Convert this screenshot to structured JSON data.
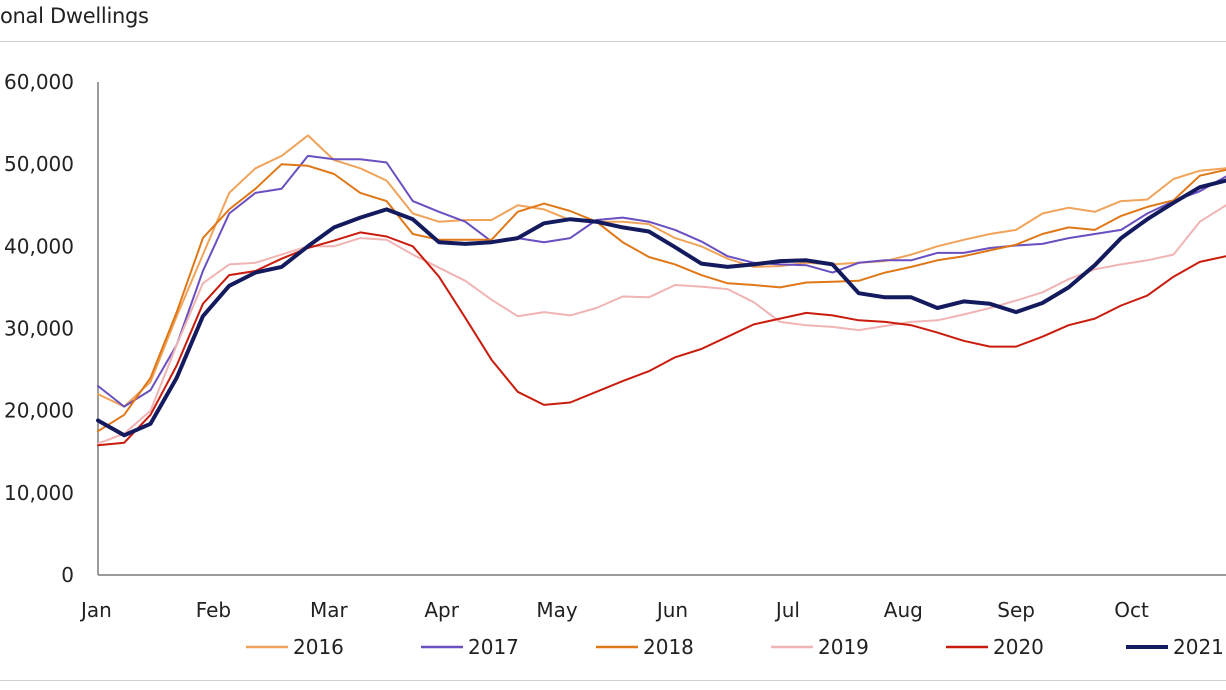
{
  "header": {
    "title": "onal Dwellings"
  },
  "chart_data": {
    "type": "line",
    "title": "onal Dwellings",
    "xlabel": "",
    "ylabel": "",
    "ylim": [
      0,
      60000
    ],
    "y_ticks": [
      0,
      10000,
      20000,
      30000,
      40000,
      50000,
      60000
    ],
    "y_tick_labels": [
      "0",
      "10,000",
      "20,000",
      "30,000",
      "40,000",
      "50,000",
      "60,000"
    ],
    "x_unit": "week",
    "x_tick_labels": [
      "Jan",
      "Feb",
      "Mar",
      "Apr",
      "May",
      "Jun",
      "Jul",
      "Aug",
      "Sep",
      "Oct"
    ],
    "x_tick_weeks": [
      0,
      4.4,
      8.8,
      13.1,
      17.5,
      21.9,
      26.3,
      30.7,
      35,
      39.4
    ],
    "x_visible_max": 43,
    "grid": false,
    "legend_position": "bottom",
    "series": [
      {
        "name": "2016",
        "color": "#f0a35a",
        "width": 2,
        "x": [
          0,
          1,
          2,
          3,
          4,
          5,
          6,
          7,
          8,
          9,
          10,
          11,
          12,
          13,
          14,
          15,
          16,
          17,
          18,
          19,
          20,
          21,
          22,
          23,
          24,
          25,
          26,
          27,
          28,
          29,
          30,
          31,
          32,
          33,
          34,
          35,
          36,
          37,
          38,
          39,
          40,
          41,
          42,
          43
        ],
        "values": [
          22000,
          20500,
          23500,
          31500,
          39000,
          46500,
          49500,
          51000,
          53500,
          50500,
          49500,
          48000,
          44000,
          43000,
          43200,
          43200,
          45000,
          44500,
          43200,
          43000,
          43000,
          42700,
          41000,
          40000,
          38500,
          37500,
          37600,
          38000,
          37800,
          38000,
          38200,
          39000,
          40000,
          40800,
          41500,
          42000,
          44000,
          44700,
          44200,
          45500,
          45700,
          48200,
          49200,
          49500
        ]
      },
      {
        "name": "2017",
        "color": "#6a4fc0",
        "width": 2,
        "x": [
          0,
          1,
          2,
          3,
          4,
          5,
          6,
          7,
          8,
          9,
          10,
          11,
          12,
          13,
          14,
          15,
          16,
          17,
          18,
          19,
          20,
          21,
          22,
          23,
          24,
          25,
          26,
          27,
          28,
          29,
          30,
          31,
          32,
          33,
          34,
          35,
          36,
          37,
          38,
          39,
          40,
          41,
          42,
          43
        ],
        "values": [
          23000,
          20500,
          22500,
          28000,
          37000,
          44000,
          46500,
          47000,
          51000,
          50600,
          50600,
          50200,
          45500,
          44200,
          43000,
          40600,
          41000,
          40500,
          41000,
          43200,
          43500,
          43000,
          42000,
          40600,
          38800,
          38000,
          37800,
          37700,
          36800,
          38000,
          38300,
          38300,
          39200,
          39200,
          39800,
          40100,
          40300,
          41000,
          41500,
          42000,
          44000,
          45500,
          46700,
          48500
        ]
      },
      {
        "name": "2018",
        "color": "#e07818",
        "width": 2,
        "x": [
          0,
          1,
          2,
          3,
          4,
          5,
          6,
          7,
          8,
          9,
          10,
          11,
          12,
          13,
          14,
          15,
          16,
          17,
          18,
          19,
          20,
          21,
          22,
          23,
          24,
          25,
          26,
          27,
          28,
          29,
          30,
          31,
          32,
          33,
          34,
          35,
          36,
          37,
          38,
          39,
          40,
          41,
          42,
          43
        ],
        "values": [
          17500,
          19500,
          24000,
          32000,
          41000,
          44500,
          47000,
          50000,
          49800,
          48800,
          46500,
          45500,
          41500,
          40800,
          40800,
          40800,
          44200,
          45200,
          44300,
          43000,
          40500,
          38700,
          37800,
          36500,
          35500,
          35300,
          35000,
          35600,
          35700,
          35800,
          36800,
          37500,
          38300,
          38800,
          39500,
          40200,
          41500,
          42300,
          42000,
          43700,
          44800,
          45600,
          48600,
          49300
        ]
      },
      {
        "name": "2019",
        "color": "#f0b4b4",
        "width": 2,
        "x": [
          0,
          1,
          2,
          3,
          4,
          5,
          6,
          7,
          8,
          9,
          10,
          11,
          12,
          13,
          14,
          15,
          16,
          17,
          18,
          19,
          20,
          21,
          22,
          23,
          24,
          25,
          26,
          27,
          28,
          29,
          30,
          31,
          32,
          33,
          34,
          35,
          36,
          37,
          38,
          39,
          40,
          41,
          42,
          43
        ],
        "values": [
          16000,
          17200,
          20000,
          28000,
          35500,
          37800,
          38000,
          39000,
          40000,
          40000,
          41000,
          40800,
          39000,
          37400,
          35800,
          33500,
          31500,
          32000,
          31600,
          32500,
          33900,
          33800,
          35300,
          35100,
          34800,
          33200,
          30800,
          30400,
          30200,
          29800,
          30300,
          30800,
          31000,
          31700,
          32500,
          33400,
          34400,
          36000,
          37200,
          37800,
          38300,
          39000,
          43000,
          45000
        ]
      },
      {
        "name": "2020",
        "color": "#c91c0c",
        "width": 2,
        "x": [
          0,
          1,
          2,
          3,
          4,
          5,
          6,
          7,
          8,
          9,
          10,
          11,
          12,
          13,
          14,
          15,
          16,
          17,
          18,
          19,
          20,
          21,
          22,
          23,
          24,
          25,
          26,
          27,
          28,
          29,
          30,
          31,
          32,
          33,
          34,
          35,
          36,
          37,
          38,
          39,
          40,
          41,
          42,
          43
        ],
        "values": [
          15800,
          16100,
          19500,
          25500,
          33000,
          36500,
          37000,
          38500,
          39800,
          40700,
          41700,
          41200,
          40000,
          36300,
          31300,
          26200,
          22300,
          20700,
          21000,
          22300,
          23600,
          24800,
          26500,
          27500,
          29000,
          30500,
          31200,
          31900,
          31600,
          31000,
          30800,
          30400,
          29500,
          28500,
          27800,
          27800,
          29000,
          30400,
          31200,
          32800,
          34000,
          36300,
          38100,
          38800
        ]
      },
      {
        "name": "2021",
        "color": "#141a5e",
        "width": 4,
        "x": [
          0,
          1,
          2,
          3,
          4,
          5,
          6,
          7,
          8,
          9,
          10,
          11,
          12,
          13,
          14,
          15,
          16,
          17,
          18,
          19,
          20,
          21,
          22,
          23,
          24,
          25,
          26,
          27,
          28,
          29,
          30,
          31,
          32,
          33,
          34,
          35,
          36,
          37,
          38,
          39,
          40,
          41,
          42,
          43
        ],
        "values": [
          18800,
          17000,
          18400,
          24000,
          31500,
          35200,
          36800,
          37500,
          40000,
          42300,
          43500,
          44500,
          43300,
          40500,
          40300,
          40500,
          41000,
          42800,
          43300,
          43000,
          42300,
          41800,
          39900,
          37900,
          37500,
          37800,
          38200,
          38300,
          37800,
          34300,
          33800,
          33800,
          32500,
          33300,
          33000,
          32000,
          33100,
          35000,
          37700,
          41000,
          43300,
          45300,
          47200,
          48000
        ]
      }
    ]
  }
}
